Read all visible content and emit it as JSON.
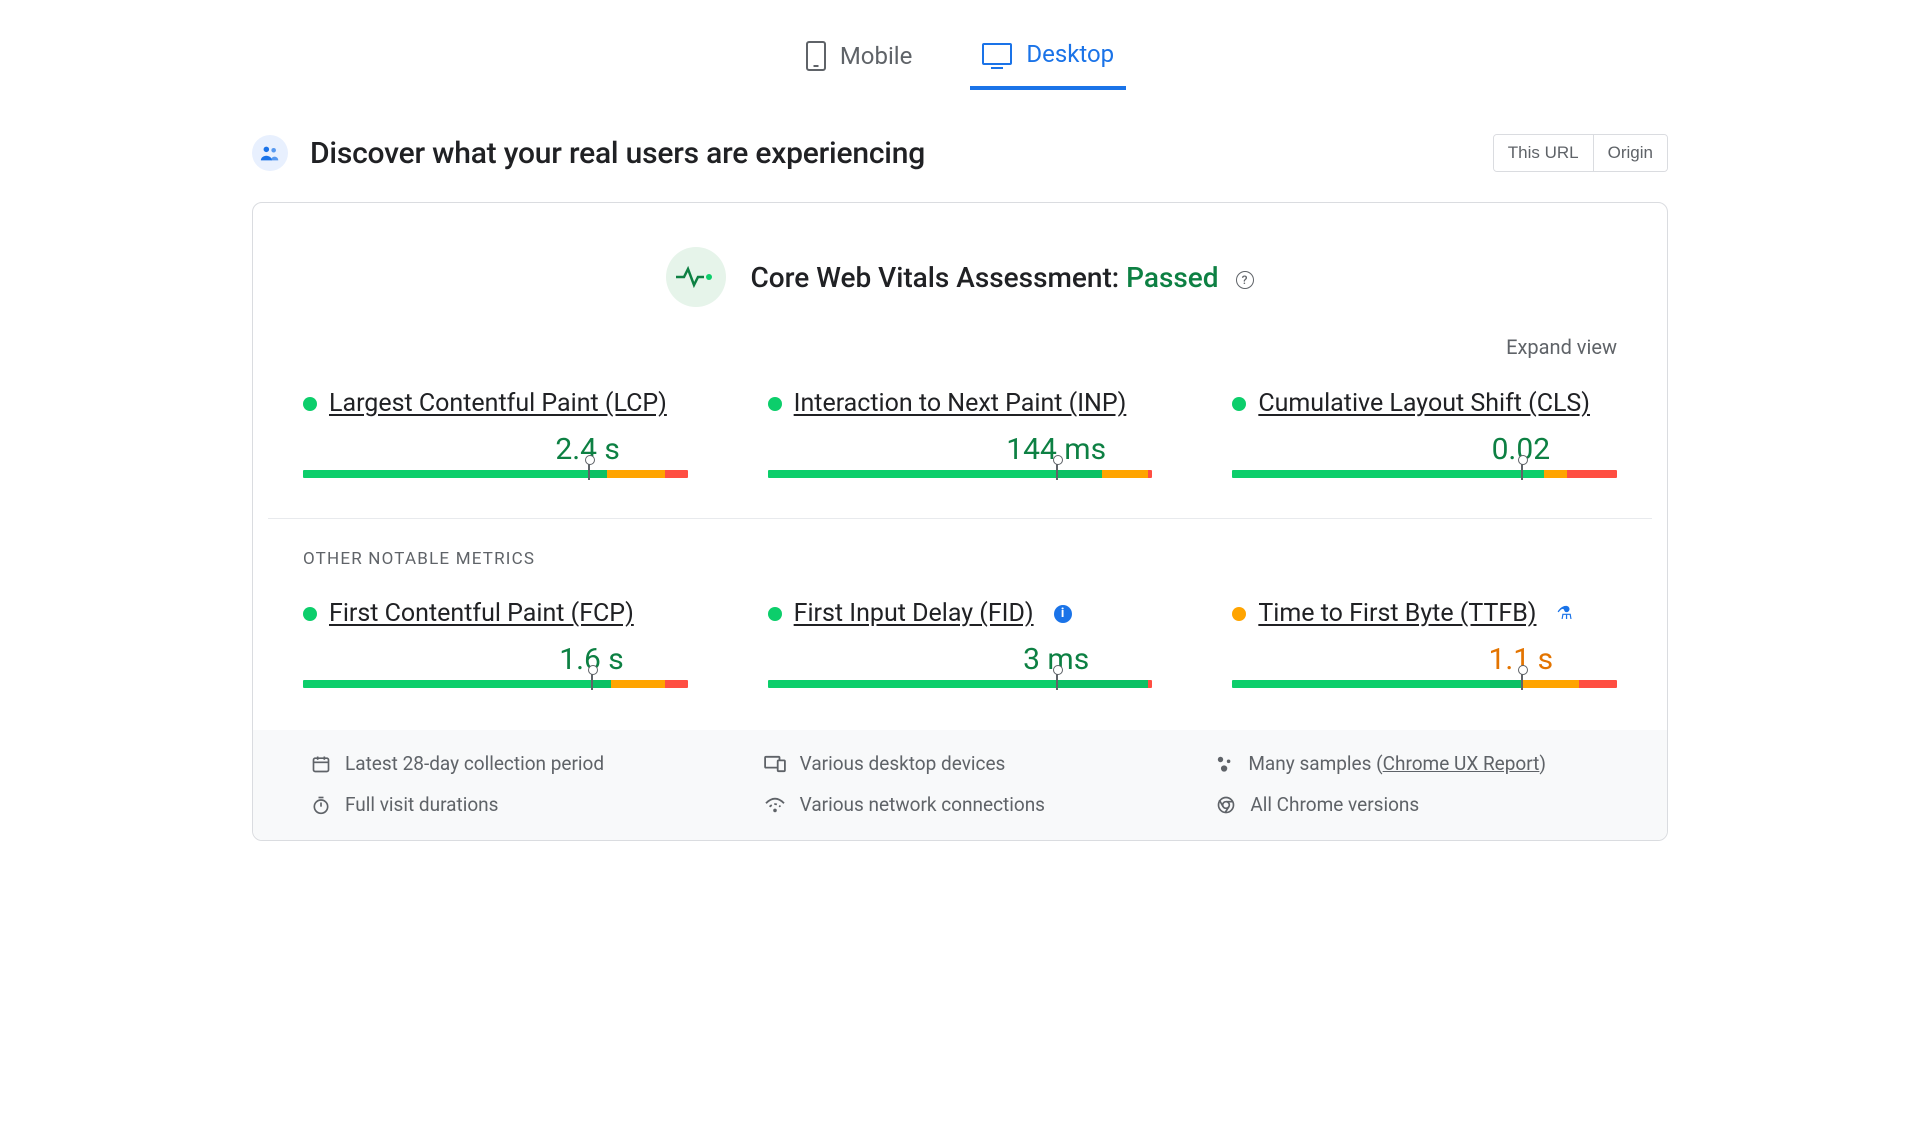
{
  "colors": {
    "good": "#0cce6b",
    "ni": "#ffa400",
    "poor": "#ff4e42",
    "accent": "#1a73e8",
    "pass": "#0d8043",
    "muted": "#5f6368"
  },
  "tabs": {
    "mobile": "Mobile",
    "desktop": "Desktop",
    "active": "desktop"
  },
  "header": {
    "title": "Discover what your real users are experiencing",
    "scope": {
      "this_url": "This URL",
      "origin": "Origin"
    }
  },
  "assessment": {
    "label": "Core Web Vitals Assessment:",
    "status": "Passed",
    "expand": "Expand view"
  },
  "other_label": "OTHER NOTABLE METRICS",
  "metrics": {
    "lcp": {
      "name": "Largest Contentful Paint (LCP)",
      "value": "2.4 s",
      "status": "good",
      "marker_pct": 74,
      "segments": [
        74,
        5,
        15,
        6
      ]
    },
    "inp": {
      "name": "Interaction to Next Paint (INP)",
      "value": "144 ms",
      "status": "good",
      "marker_pct": 75,
      "segments": [
        75,
        12,
        12,
        1
      ]
    },
    "cls": {
      "name": "Cumulative Layout Shift (CLS)",
      "value": "0.02",
      "status": "good",
      "marker_pct": 75,
      "segments": [
        75,
        6,
        1,
        5,
        13
      ],
      "custom_segments": true
    },
    "fcp": {
      "name": "First Contentful Paint (FCP)",
      "value": "1.6 s",
      "status": "good",
      "marker_pct": 75,
      "segments": [
        75,
        5,
        14,
        6
      ]
    },
    "fid": {
      "name": "First Input Delay (FID)",
      "value": "3 ms",
      "status": "good",
      "marker_pct": 75,
      "segments": [
        75,
        24,
        0,
        1
      ],
      "info": true
    },
    "ttfb": {
      "name": "Time to First Byte (TTFB)",
      "value": "1.1 s",
      "status": "ni",
      "marker_pct": 75,
      "segments": [
        67,
        8,
        15,
        10
      ],
      "flask": true
    }
  },
  "footer": {
    "period": "Latest 28-day collection period",
    "devices": "Various desktop devices",
    "samples": "Many samples (",
    "samples_link": "Chrome UX Report",
    "samples_tail": ")",
    "durations": "Full visit durations",
    "network": "Various network connections",
    "versions": "All Chrome versions"
  }
}
